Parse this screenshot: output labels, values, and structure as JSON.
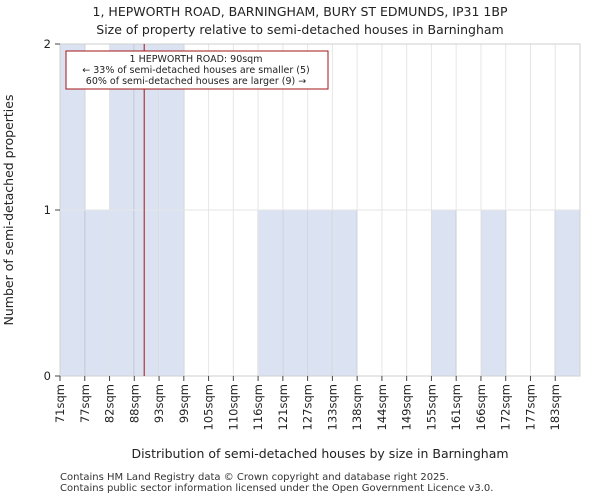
{
  "chart_data": {
    "type": "bar",
    "title_line1": "1, HEPWORTH ROAD, BARNINGHAM, BURY ST EDMUNDS, IP31 1BP",
    "title_line2": "Size of property relative to semi-detached houses in Barningham",
    "xlabel": "Distribution of semi-detached houses by size in Barningham",
    "ylabel": "Number of semi-detached properties",
    "categories": [
      "71sqm",
      "77sqm",
      "82sqm",
      "88sqm",
      "93sqm",
      "99sqm",
      "105sqm",
      "110sqm",
      "116sqm",
      "121sqm",
      "127sqm",
      "133sqm",
      "138sqm",
      "144sqm",
      "149sqm",
      "155sqm",
      "161sqm",
      "166sqm",
      "172sqm",
      "177sqm",
      "183sqm"
    ],
    "values": [
      2,
      1,
      2,
      2,
      2,
      0,
      0,
      0,
      1,
      1,
      1,
      1,
      0,
      0,
      0,
      1,
      0,
      1,
      0,
      0,
      1
    ],
    "ylim": [
      0,
      2
    ],
    "yticks": [
      0,
      1,
      2
    ],
    "grid": true,
    "bar_color": "#dbe3f3",
    "bar_edge_color": "#2c4a9a",
    "marker": {
      "value_label": "90sqm",
      "bin_index": 3,
      "bin_fraction": 0.4,
      "color": "#a31515"
    },
    "annotation": {
      "line1": "1 HEPWORTH ROAD: 90sqm",
      "line2": "← 33% of semi-detached houses are smaller (5)",
      "line3": "60% of semi-detached houses are larger (9) →",
      "border_color": "#a31515"
    }
  },
  "footer": {
    "line1": "Contains HM Land Registry data © Crown copyright and database right 2025.",
    "line2": "Contains public sector information licensed under the Open Government Licence v3.0."
  }
}
